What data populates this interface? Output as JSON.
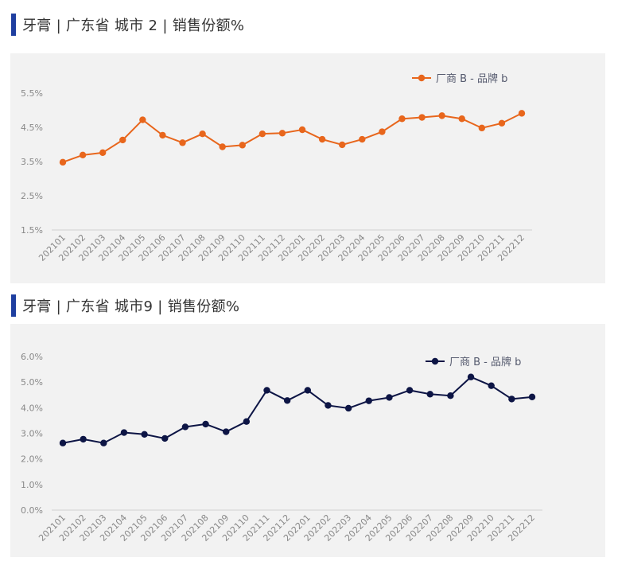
{
  "header_bar_color": "#1f3fa0",
  "charts_header": [
    {
      "title": "牙膏 | 广东省 城市 2 |  销售份额%"
    },
    {
      "title": "牙膏 | 广东省 城市9 | 销售份额%"
    }
  ],
  "chart_data": [
    {
      "type": "line",
      "categories": [
        "202101",
        "202102",
        "202103",
        "202104",
        "202105",
        "202106",
        "202107",
        "202108",
        "202109",
        "202110",
        "202111",
        "202112",
        "202201",
        "202202",
        "202203",
        "202204",
        "202205",
        "202206",
        "202207",
        "202208",
        "202209",
        "202210",
        "202211",
        "202212"
      ],
      "series": [
        {
          "name": "厂商 B - 品牌 b",
          "color": "#e8661c",
          "values": [
            3.48,
            3.69,
            3.76,
            4.13,
            4.72,
            4.27,
            4.05,
            4.31,
            3.93,
            3.98,
            4.31,
            4.33,
            4.43,
            4.15,
            3.99,
            4.15,
            4.37,
            4.75,
            4.79,
            4.84,
            4.75,
            4.48,
            4.62,
            4.91
          ]
        }
      ],
      "yticks": [
        "5.5%",
        "4.5%",
        "3.5%",
        "2.5%",
        "1.5%"
      ],
      "ylim": [
        1.5,
        5.5
      ],
      "legend": "top-right",
      "grid": false
    },
    {
      "type": "line",
      "categories": [
        "202101",
        "202102",
        "202103",
        "202104",
        "202105",
        "202106",
        "202107",
        "202108",
        "202109",
        "202110",
        "202111",
        "202112",
        "202201",
        "202202",
        "202203",
        "202204",
        "202205",
        "202206",
        "202207",
        "202208",
        "202209",
        "202210",
        "202211",
        "202212"
      ],
      "series": [
        {
          "name": "厂商 B - 品牌 b",
          "color": "#0d1545",
          "values": [
            2.62,
            2.77,
            2.62,
            3.03,
            2.96,
            2.8,
            3.25,
            3.36,
            3.06,
            3.46,
            4.68,
            4.28,
            4.68,
            4.09,
            3.98,
            4.27,
            4.4,
            4.68,
            4.53,
            4.47,
            5.2,
            4.86,
            4.34,
            4.42
          ]
        }
      ],
      "yticks": [
        "6.0%",
        "5.0%",
        "4.0%",
        "3.0%",
        "2.0%",
        "1.0%",
        "0.0%"
      ],
      "ylim": [
        0.0,
        6.0
      ],
      "legend": "top-right",
      "grid": false
    }
  ]
}
